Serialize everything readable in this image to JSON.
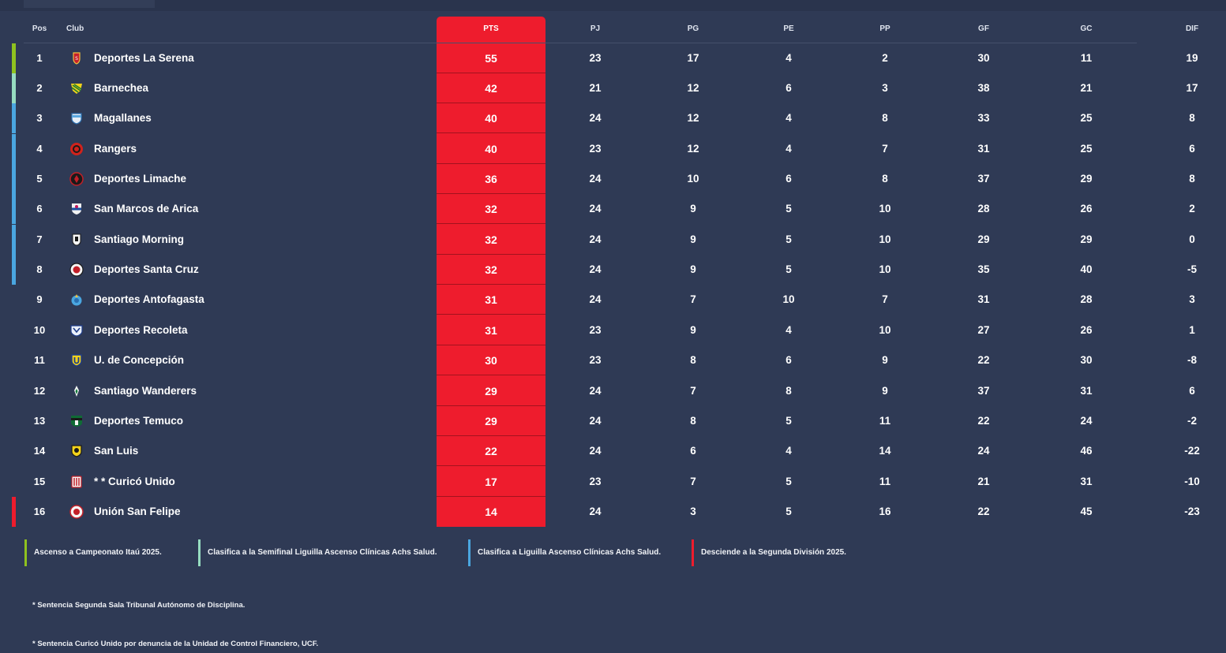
{
  "headers": {
    "pos": "Pos",
    "club": "Club",
    "pts": "PTS",
    "pj": "PJ",
    "pg": "PG",
    "pe": "PE",
    "pp": "PP",
    "gf": "GF",
    "gc": "GC",
    "dif": "DIF"
  },
  "colors": {
    "promotion": "#8fc21f",
    "semifinal": "#96dcc0",
    "liguilla": "#4aa6e0",
    "relegation": "#ee1c2d",
    "pts_column": "#ee1c2d",
    "background": "#2f3a55"
  },
  "rows": [
    {
      "pos": "1",
      "club": "Deportes La Serena",
      "pts": "55",
      "pj": "23",
      "pg": "17",
      "pe": "4",
      "pp": "2",
      "gf": "30",
      "gc": "11",
      "dif": "19",
      "zone": "promotion",
      "crest": "la-serena-crest-icon"
    },
    {
      "pos": "2",
      "club": "Barnechea",
      "pts": "42",
      "pj": "21",
      "pg": "12",
      "pe": "6",
      "pp": "3",
      "gf": "38",
      "gc": "21",
      "dif": "17",
      "zone": "semifinal",
      "crest": "barnechea-crest-icon"
    },
    {
      "pos": "3",
      "club": "Magallanes",
      "pts": "40",
      "pj": "24",
      "pg": "12",
      "pe": "4",
      "pp": "8",
      "gf": "33",
      "gc": "25",
      "dif": "8",
      "zone": "liguilla",
      "crest": "magallanes-crest-icon"
    },
    {
      "pos": "4",
      "club": "Rangers",
      "pts": "40",
      "pj": "23",
      "pg": "12",
      "pe": "4",
      "pp": "7",
      "gf": "31",
      "gc": "25",
      "dif": "6",
      "zone": "liguilla",
      "crest": "rangers-crest-icon"
    },
    {
      "pos": "5",
      "club": "Deportes Limache",
      "pts": "36",
      "pj": "24",
      "pg": "10",
      "pe": "6",
      "pp": "8",
      "gf": "37",
      "gc": "29",
      "dif": "8",
      "zone": "liguilla",
      "crest": "limache-crest-icon"
    },
    {
      "pos": "6",
      "club": "San Marcos de Arica",
      "pts": "32",
      "pj": "24",
      "pg": "9",
      "pe": "5",
      "pp": "10",
      "gf": "28",
      "gc": "26",
      "dif": "2",
      "zone": "liguilla",
      "crest": "san-marcos-crest-icon"
    },
    {
      "pos": "7",
      "club": "Santiago Morning",
      "pts": "32",
      "pj": "24",
      "pg": "9",
      "pe": "5",
      "pp": "10",
      "gf": "29",
      "gc": "29",
      "dif": "0",
      "zone": "liguilla",
      "crest": "santiago-morning-crest-icon"
    },
    {
      "pos": "8",
      "club": "Deportes Santa Cruz",
      "pts": "32",
      "pj": "24",
      "pg": "9",
      "pe": "5",
      "pp": "10",
      "gf": "35",
      "gc": "40",
      "dif": "-5",
      "zone": "liguilla",
      "crest": "santa-cruz-crest-icon"
    },
    {
      "pos": "9",
      "club": "Deportes Antofagasta",
      "pts": "31",
      "pj": "24",
      "pg": "7",
      "pe": "10",
      "pp": "7",
      "gf": "31",
      "gc": "28",
      "dif": "3",
      "zone": "",
      "crest": "antofagasta-crest-icon"
    },
    {
      "pos": "10",
      "club": "Deportes Recoleta",
      "pts": "31",
      "pj": "23",
      "pg": "9",
      "pe": "4",
      "pp": "10",
      "gf": "27",
      "gc": "26",
      "dif": "1",
      "zone": "",
      "crest": "recoleta-crest-icon"
    },
    {
      "pos": "11",
      "club": "U. de Concepción",
      "pts": "30",
      "pj": "23",
      "pg": "8",
      "pe": "6",
      "pp": "9",
      "gf": "22",
      "gc": "30",
      "dif": "-8",
      "zone": "",
      "crest": "udec-crest-icon"
    },
    {
      "pos": "12",
      "club": "Santiago Wanderers",
      "pts": "29",
      "pj": "24",
      "pg": "7",
      "pe": "8",
      "pp": "9",
      "gf": "37",
      "gc": "31",
      "dif": "6",
      "zone": "",
      "crest": "wanderers-crest-icon"
    },
    {
      "pos": "13",
      "club": "Deportes Temuco",
      "pts": "29",
      "pj": "24",
      "pg": "8",
      "pe": "5",
      "pp": "11",
      "gf": "22",
      "gc": "24",
      "dif": "-2",
      "zone": "",
      "crest": "temuco-crest-icon"
    },
    {
      "pos": "14",
      "club": "San Luis",
      "pts": "22",
      "pj": "24",
      "pg": "6",
      "pe": "4",
      "pp": "14",
      "gf": "24",
      "gc": "46",
      "dif": "-22",
      "zone": "",
      "crest": "san-luis-crest-icon"
    },
    {
      "pos": "15",
      "club": "* * Curicó Unido",
      "pts": "17",
      "pj": "23",
      "pg": "7",
      "pe": "5",
      "pp": "11",
      "gf": "21",
      "gc": "31",
      "dif": "-10",
      "zone": "",
      "crest": "curico-crest-icon"
    },
    {
      "pos": "16",
      "club": "Unión San Felipe",
      "pts": "14",
      "pj": "24",
      "pg": "3",
      "pe": "5",
      "pp": "16",
      "gf": "22",
      "gc": "45",
      "dif": "-23",
      "zone": "relegation",
      "crest": "san-felipe-crest-icon"
    }
  ],
  "legend": [
    {
      "zone": "promotion",
      "text": "Ascenso a Campeonato Itaú 2025."
    },
    {
      "zone": "semifinal",
      "text": "Clasifica a la Semifinal Liguilla Ascenso Clínicas Achs Salud."
    },
    {
      "zone": "liguilla",
      "text": "Clasifica a Liguilla Ascenso Clínicas Achs Salud."
    },
    {
      "zone": "relegation",
      "text": "Desciende a la Segunda División 2025."
    }
  ],
  "notes": [
    "* Sentencia Segunda Sala Tribunal Autónomo de Disciplina.",
    "* Sentencia Curicó Unido por denuncia de la Unidad de Control Financiero, UCF."
  ]
}
